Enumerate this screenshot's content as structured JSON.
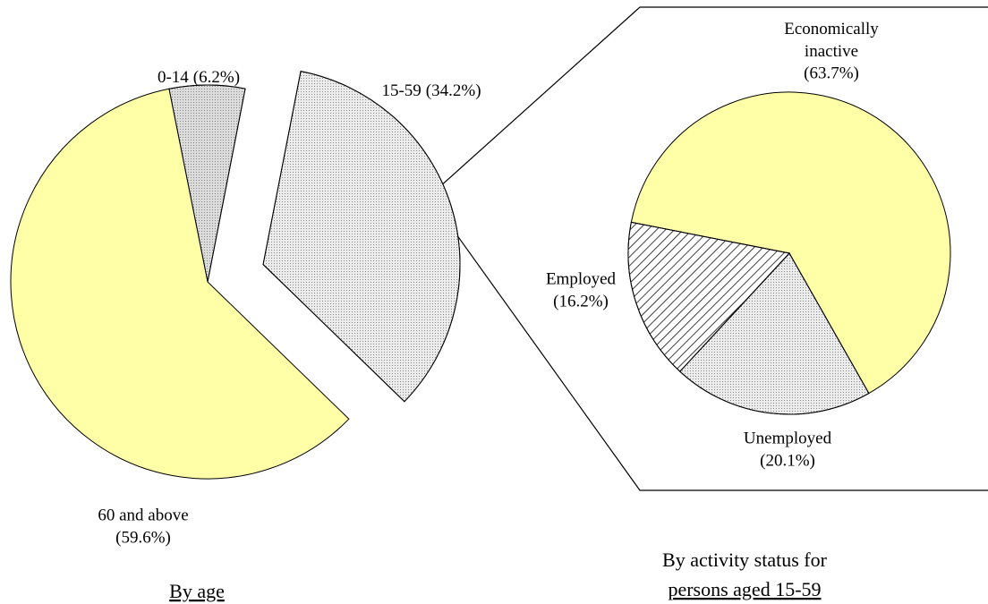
{
  "chart_data": [
    {
      "type": "pie",
      "title": "By age",
      "categories": [
        "0-14",
        "15-59",
        "60 and above"
      ],
      "values": [
        6.2,
        34.2,
        59.6
      ],
      "value_labels": [
        "(6.2%)",
        "(34.2%)",
        "(59.6%)"
      ],
      "colors": [
        "#dcdcdc",
        "#ececec",
        "#ffffa8"
      ]
    },
    {
      "type": "pie",
      "title": "By activity status for",
      "subtitle": "persons aged 15-59",
      "categories": [
        "Economically inactive",
        "Unemployed",
        "Employed"
      ],
      "values": [
        63.7,
        20.1,
        16.2
      ],
      "value_labels": [
        "(63.7%)",
        "(20.1%)",
        "(16.2%)"
      ],
      "colors": [
        "#ffffa8",
        "#ececec",
        "#ffffff"
      ]
    }
  ]
}
